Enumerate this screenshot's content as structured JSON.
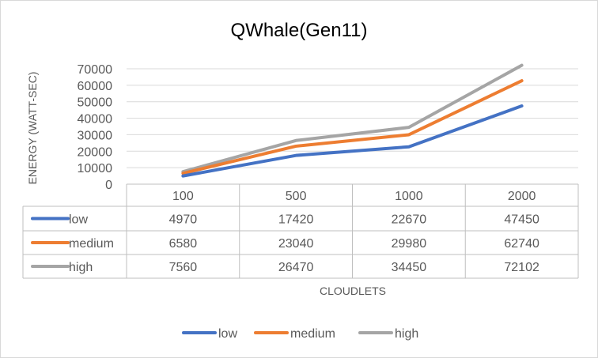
{
  "chart_data": {
    "type": "line",
    "title": "QWhale(Gen11)",
    "xlabel": "CLOUDLETS",
    "ylabel": "ENERGY (WATT-SEC)",
    "categories": [
      "100",
      "500",
      "1000",
      "2000"
    ],
    "ylim": [
      0,
      70000
    ],
    "yticks": [
      "0",
      "10000",
      "20000",
      "30000",
      "40000",
      "50000",
      "60000",
      "70000"
    ],
    "grid": true,
    "legend": "bottom",
    "data_table": true,
    "series": [
      {
        "name": "low",
        "values": [
          4970,
          17420,
          22670,
          47450
        ],
        "color": "#4472C4"
      },
      {
        "name": "medium",
        "values": [
          6580,
          23040,
          29980,
          62740
        ],
        "color": "#ED7D31"
      },
      {
        "name": "high",
        "values": [
          7560,
          26470,
          34450,
          72102
        ],
        "color": "#A5A5A5"
      }
    ]
  }
}
